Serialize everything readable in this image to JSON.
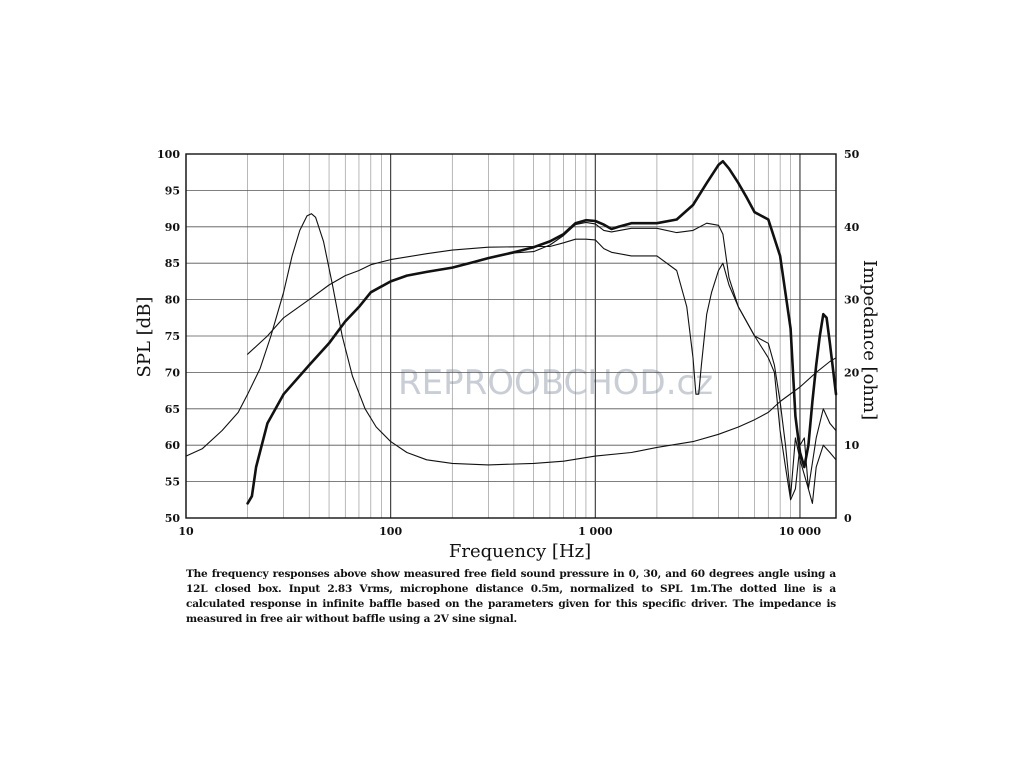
{
  "chart_data": {
    "type": "line",
    "title": "",
    "xlabel": "Frequency [Hz]",
    "ylabel_left": "SPL [dB]",
    "ylabel_right": "Impedance [ohm]",
    "x_scale": "log",
    "xlim": [
      10,
      15000
    ],
    "ylim_left": [
      50,
      100
    ],
    "ylim_right": [
      0,
      50
    ],
    "grid": true,
    "x_tick_labels": [
      "10",
      "100",
      "1 000",
      "10 000"
    ],
    "x_tick_values": [
      10,
      100,
      1000,
      10000
    ],
    "y_left_ticks": [
      50,
      55,
      60,
      65,
      70,
      75,
      80,
      85,
      90,
      95,
      100
    ],
    "y_right_ticks": [
      0,
      10,
      20,
      30,
      40,
      50
    ],
    "watermark": "REPROOBCHOD.cz",
    "series": [
      {
        "axis": "left",
        "style": "thick",
        "points": [
          [
            20,
            52
          ],
          [
            21,
            53
          ],
          [
            22,
            57
          ],
          [
            25,
            63
          ],
          [
            30,
            67
          ],
          [
            40,
            71
          ],
          [
            50,
            74
          ],
          [
            60,
            77
          ],
          [
            70,
            79
          ],
          [
            80,
            81
          ],
          [
            100,
            82.5
          ],
          [
            120,
            83.3
          ],
          [
            150,
            83.8
          ],
          [
            200,
            84.4
          ],
          [
            250,
            85.1
          ],
          [
            300,
            85.7
          ],
          [
            400,
            86.5
          ],
          [
            500,
            87.2
          ],
          [
            600,
            88
          ],
          [
            700,
            89
          ],
          [
            800,
            90.5
          ],
          [
            900,
            90.9
          ],
          [
            1000,
            90.8
          ],
          [
            1100,
            90.3
          ],
          [
            1200,
            89.7
          ],
          [
            1300,
            90
          ],
          [
            1500,
            90.5
          ],
          [
            2000,
            90.5
          ],
          [
            2500,
            91
          ],
          [
            3000,
            93
          ],
          [
            3500,
            96
          ],
          [
            4000,
            98.5
          ],
          [
            4200,
            99
          ],
          [
            4500,
            98
          ],
          [
            5000,
            96
          ],
          [
            5500,
            94
          ],
          [
            6000,
            92
          ],
          [
            7000,
            91
          ],
          [
            8000,
            86
          ],
          [
            9000,
            76
          ],
          [
            9500,
            64
          ],
          [
            10000,
            59
          ],
          [
            10500,
            57
          ],
          [
            11000,
            60
          ],
          [
            11500,
            66
          ],
          [
            12000,
            71
          ],
          [
            12500,
            75
          ],
          [
            13000,
            78
          ],
          [
            13500,
            77.5
          ],
          [
            14000,
            74
          ],
          [
            15000,
            67
          ]
        ]
      },
      {
        "axis": "left",
        "style": "thin",
        "points": [
          [
            20,
            72.5
          ],
          [
            25,
            75
          ],
          [
            30,
            77.5
          ],
          [
            40,
            80
          ],
          [
            50,
            82
          ],
          [
            60,
            83.3
          ],
          [
            70,
            84
          ],
          [
            80,
            84.8
          ],
          [
            100,
            85.5
          ],
          [
            150,
            86.3
          ],
          [
            200,
            86.8
          ],
          [
            300,
            87.2
          ],
          [
            500,
            87.3
          ],
          [
            600,
            87.3
          ],
          [
            700,
            87.8
          ],
          [
            800,
            88.3
          ],
          [
            900,
            88.3
          ],
          [
            1000,
            88.2
          ],
          [
            1100,
            87
          ],
          [
            1200,
            86.5
          ],
          [
            1500,
            86
          ],
          [
            2000,
            86
          ],
          [
            2500,
            84
          ],
          [
            2800,
            79
          ],
          [
            3000,
            72
          ],
          [
            3100,
            67
          ],
          [
            3200,
            67
          ],
          [
            3300,
            71
          ],
          [
            3500,
            78
          ],
          [
            3700,
            81
          ],
          [
            4000,
            84
          ],
          [
            4200,
            85
          ],
          [
            4500,
            82
          ],
          [
            5000,
            79
          ],
          [
            6000,
            75
          ],
          [
            7000,
            74
          ],
          [
            7500,
            71
          ],
          [
            8000,
            66
          ],
          [
            8500,
            60
          ],
          [
            9000,
            53
          ],
          [
            9500,
            61
          ],
          [
            10000,
            58
          ],
          [
            11000,
            54
          ],
          [
            12000,
            61
          ],
          [
            13000,
            65
          ],
          [
            14000,
            63
          ],
          [
            15000,
            62
          ]
        ]
      },
      {
        "axis": "left",
        "style": "thin",
        "points": [
          [
            400,
            86.4
          ],
          [
            500,
            86.6
          ],
          [
            600,
            87.5
          ],
          [
            700,
            88.8
          ],
          [
            800,
            90.3
          ],
          [
            900,
            90.6
          ],
          [
            1000,
            90.4
          ],
          [
            1100,
            89.5
          ],
          [
            1200,
            89.3
          ],
          [
            1500,
            89.8
          ],
          [
            2000,
            89.8
          ],
          [
            2500,
            89.2
          ],
          [
            3000,
            89.5
          ],
          [
            3500,
            90.5
          ],
          [
            4000,
            90.2
          ],
          [
            4200,
            89
          ],
          [
            4500,
            83
          ],
          [
            5000,
            79
          ],
          [
            6000,
            75
          ],
          [
            7000,
            72
          ],
          [
            7500,
            70
          ],
          [
            8000,
            62
          ],
          [
            8500,
            57
          ],
          [
            9000,
            52.5
          ],
          [
            9500,
            54
          ],
          [
            10000,
            60
          ],
          [
            10500,
            61
          ],
          [
            11000,
            54
          ],
          [
            11500,
            52
          ],
          [
            12000,
            57
          ],
          [
            13000,
            60
          ],
          [
            14000,
            59
          ],
          [
            15000,
            58
          ]
        ]
      },
      {
        "axis": "right",
        "style": "thin",
        "points": [
          [
            10,
            8.5
          ],
          [
            12,
            9.5
          ],
          [
            15,
            12
          ],
          [
            18,
            14.5
          ],
          [
            20,
            17
          ],
          [
            23,
            20.5
          ],
          [
            26,
            25
          ],
          [
            30,
            31
          ],
          [
            33,
            36
          ],
          [
            36,
            39.5
          ],
          [
            39,
            41.5
          ],
          [
            41,
            41.8
          ],
          [
            43,
            41.3
          ],
          [
            47,
            38
          ],
          [
            52,
            32
          ],
          [
            58,
            25
          ],
          [
            65,
            19.5
          ],
          [
            75,
            15
          ],
          [
            85,
            12.5
          ],
          [
            100,
            10.5
          ],
          [
            120,
            9
          ],
          [
            150,
            8
          ],
          [
            200,
            7.5
          ],
          [
            300,
            7.3
          ],
          [
            500,
            7.5
          ],
          [
            700,
            7.8
          ],
          [
            1000,
            8.5
          ],
          [
            1500,
            9
          ],
          [
            2000,
            9.7
          ],
          [
            3000,
            10.5
          ],
          [
            4000,
            11.5
          ],
          [
            5000,
            12.5
          ],
          [
            6000,
            13.5
          ],
          [
            7000,
            14.5
          ],
          [
            8000,
            16
          ],
          [
            10000,
            18
          ],
          [
            12000,
            20
          ],
          [
            14000,
            21.5
          ],
          [
            15000,
            22
          ]
        ]
      }
    ]
  },
  "caption": "The frequency responses above show measured free field sound pressure in 0, 30, and 60 degrees angle using a 12L closed box. Input 2.83 Vrms, microphone distance 0.5m, normalized to SPL 1m.The dotted line is a calculated response in infinite baffle based on the parameters given for this specific driver. The impedance is measured in free air without baffle using a 2V sine signal."
}
